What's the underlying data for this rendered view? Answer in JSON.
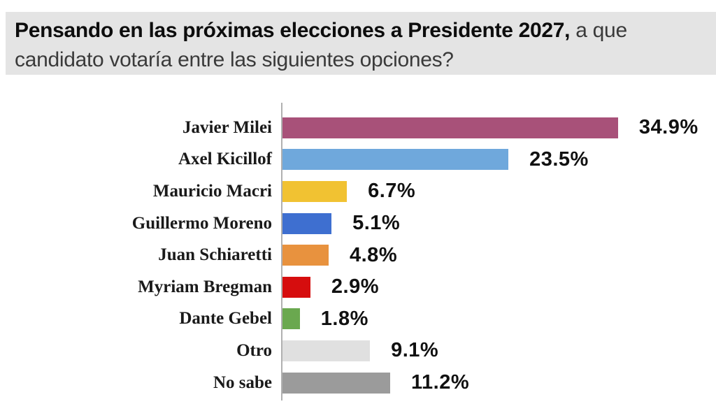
{
  "title": {
    "line1_bold": "Pensando en las próximas elecciones a Presidente 2027,",
    "line1_regular": "a que",
    "line2": "candidato votaría entre las siguientes opciones?",
    "full_text": "Pensando en las próximas elecciones a Presidente 2027, a que candidato votaría entre las siguientes opciones?"
  },
  "chart_data": {
    "type": "bar",
    "orientation": "horizontal",
    "categories": [
      "Javier Milei",
      "Axel Kicillof",
      "Mauricio Macri",
      "Guillermo Moreno",
      "Juan Schiaretti",
      "Myriam Bregman",
      "Dante Gebel",
      "Otro",
      "No sabe"
    ],
    "values": [
      34.9,
      23.5,
      6.7,
      5.1,
      4.8,
      2.9,
      1.8,
      9.1,
      11.2
    ],
    "value_labels": [
      "34.9%",
      "23.5%",
      "6.7%",
      "5.1%",
      "4.8%",
      "2.9%",
      "1.8%",
      "9.1%",
      "11.2%"
    ],
    "bar_colors": [
      "#a85179",
      "#6fa8dc",
      "#f1c232",
      "#3e6fd0",
      "#e8923e",
      "#d60d0e",
      "#6aa84f",
      "#e0e0e0",
      "#9b9b9b"
    ],
    "xlim": [
      0,
      43
    ],
    "xlabel": "",
    "ylabel": "",
    "grid": false,
    "legend": false,
    "axis_line_color": "#b0b0b0",
    "value_label_color": "#111111",
    "category_label_color": "#1a1a1a"
  },
  "colors": {
    "title_background": "#e4e4e4",
    "title_bold_text": "#0d0d0d",
    "title_regular_text": "#3a3a3a",
    "page_background": "#ffffff"
  }
}
